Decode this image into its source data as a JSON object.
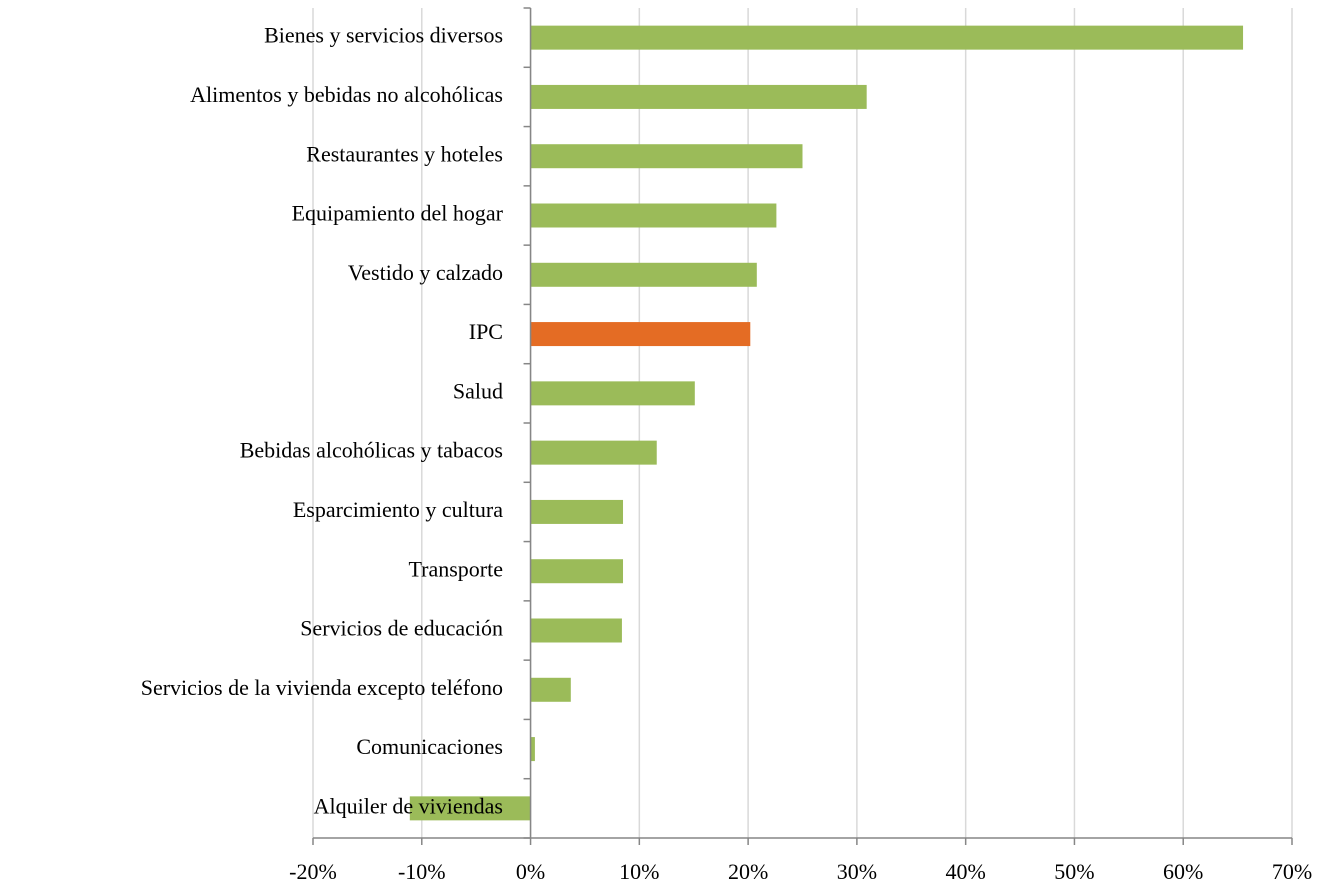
{
  "chart_data": {
    "type": "bar",
    "orientation": "horizontal",
    "categories": [
      "Bienes y servicios diversos",
      "Alimentos y bebidas no alcohólicas",
      "Restaurantes y hoteles",
      "Equipamiento del hogar",
      "Vestido y calzado",
      "IPC",
      "Salud",
      "Bebidas alcohólicas y tabacos",
      "Esparcimiento y cultura",
      "Transporte",
      "Servicios de educación",
      "Servicios de la vivienda excepto teléfono",
      "Comunicaciones",
      "Alquiler de viviendas"
    ],
    "values": [
      65.5,
      30.9,
      25.0,
      22.6,
      20.8,
      20.2,
      15.1,
      11.6,
      8.5,
      8.5,
      8.4,
      3.7,
      0.4,
      -11.1
    ],
    "colors": [
      "#9bbb59",
      "#9bbb59",
      "#9bbb59",
      "#9bbb59",
      "#9bbb59",
      "#e46c24",
      "#9bbb59",
      "#9bbb59",
      "#9bbb59",
      "#9bbb59",
      "#9bbb59",
      "#9bbb59",
      "#9bbb59",
      "#9bbb59"
    ],
    "xlim": [
      -20,
      70
    ],
    "xticks": [
      {
        "value": -20,
        "label": "-20%"
      },
      {
        "value": -10,
        "label": "-10%"
      },
      {
        "value": 0,
        "label": "0%"
      },
      {
        "value": 10,
        "label": "10%"
      },
      {
        "value": 20,
        "label": "20%"
      },
      {
        "value": 30,
        "label": "30%"
      },
      {
        "value": 40,
        "label": "40%"
      },
      {
        "value": 50,
        "label": "50%"
      },
      {
        "value": 60,
        "label": "60%"
      },
      {
        "value": 70,
        "label": "70%"
      }
    ],
    "grid": true
  }
}
